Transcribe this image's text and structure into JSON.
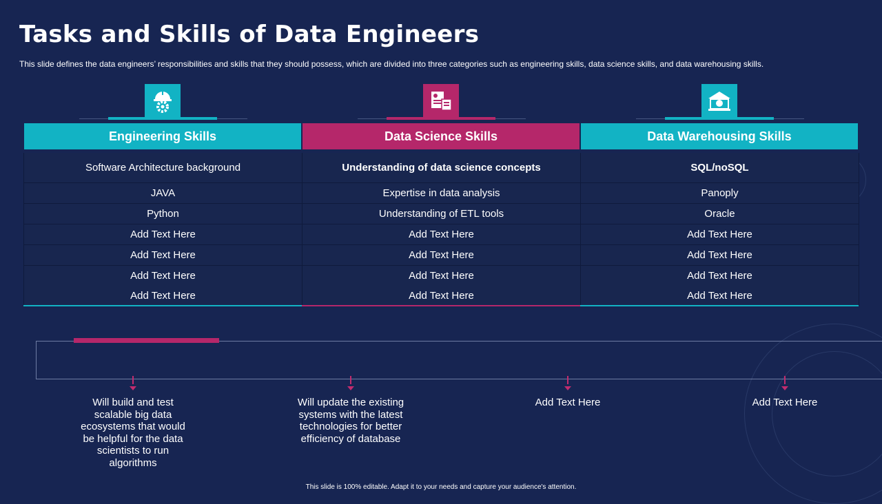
{
  "title": "Tasks and Skills of Data Engineers",
  "subtitle": "This slide defines the data engineers’ responsibilities and skills that they should possess, which are divided into three categories such as engineering skills, data science skills, and data warehousing skills.",
  "colors": {
    "background": "#172552",
    "teal": "#12b3c4",
    "magenta": "#b5276a"
  },
  "columns": [
    {
      "header": "Engineering Skills",
      "icon": "engineer-helmet-gear-icon",
      "rows": [
        "Software Architecture background",
        "JAVA",
        "Python",
        "Add Text Here",
        "Add Text Here",
        "Add Text Here",
        "Add Text Here"
      ]
    },
    {
      "header": "Data Science Skills",
      "icon": "data-report-icon",
      "rows": [
        "Understanding of data science concepts",
        "Expertise in data analysis",
        "Understanding of ETL tools",
        "Add Text Here",
        "Add Text Here",
        "Add Text Here",
        "Add Text Here"
      ]
    },
    {
      "header": "Data Warehousing Skills",
      "icon": "warehouse-building-icon",
      "rows": [
        "SQL/noSQL",
        "Panoply",
        "Oracle",
        "Add Text Here",
        "Add Text Here",
        "Add Text Here",
        "Add Text Here"
      ]
    }
  ],
  "tasks": [
    "Will build and test scalable big data ecosystems that would be helpful for the data scientists to run algorithms",
    "Will update the existing systems with the latest technologies for better efficiency of database",
    "Add Text Here",
    "Add Text Here"
  ],
  "footer": "This slide is 100% editable. Adapt it to your needs and capture your audience's attention."
}
